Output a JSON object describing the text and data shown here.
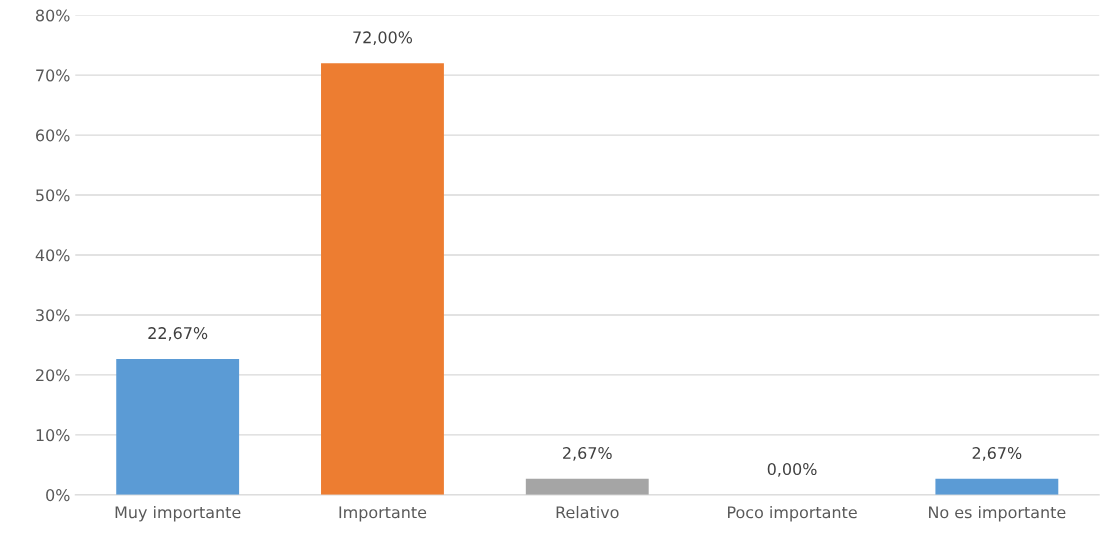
{
  "chart_data": {
    "type": "bar",
    "categories": [
      "Muy importante",
      "Importante",
      "Relativo",
      "Poco importante",
      "No es importante"
    ],
    "values": [
      22.67,
      72,
      2.67,
      0,
      2.67
    ],
    "colors": [
      "#5b9bd5",
      "#ed7d31",
      "#a5a5a5",
      "#ffc000",
      "#5b9bd5"
    ],
    "value_labels": [
      "22,67%",
      "72,00%",
      "2,67%",
      "0,00%",
      "2,67%"
    ],
    "ylim": [
      0,
      80
    ],
    "yticks": [
      {
        "value": 0,
        "label": "0%"
      },
      {
        "value": 10,
        "label": "10%"
      },
      {
        "value": 20,
        "label": "20%"
      },
      {
        "value": 30,
        "label": "30%"
      },
      {
        "value": 40,
        "label": "40%"
      },
      {
        "value": 50,
        "label": "50%"
      },
      {
        "value": 60,
        "label": "60%"
      },
      {
        "value": 70,
        "label": "70%"
      },
      {
        "value": 80,
        "label": "80%"
      }
    ],
    "grid": "y",
    "legend": false
  }
}
